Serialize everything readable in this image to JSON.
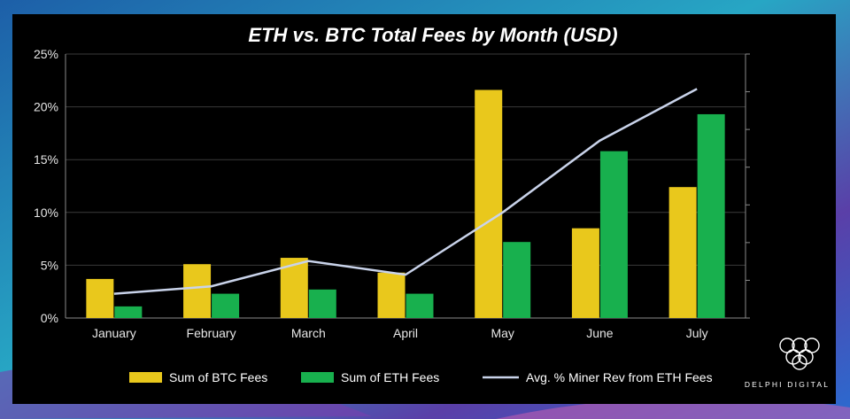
{
  "colors": {
    "btc": "#e9c81c",
    "eth": "#18b04e",
    "line": "#c9d3ea",
    "text": "#ffffff",
    "tick": "#e6e6e6",
    "grid": "#3a3a3a"
  },
  "chart_data": {
    "type": "bar",
    "title": "ETH vs. BTC Total Fees by Month (USD)",
    "categories": [
      "January",
      "February",
      "March",
      "April",
      "May",
      "June",
      "July"
    ],
    "ylim": [
      0,
      25
    ],
    "yticks": [
      "0%",
      "5%",
      "10%",
      "15%",
      "20%",
      "25%"
    ],
    "ytick_values": [
      0,
      5,
      10,
      15,
      20,
      25
    ],
    "series": [
      {
        "name": "Sum of BTC Fees",
        "kind": "bar",
        "values": [
          3.7,
          5.1,
          5.7,
          4.3,
          21.6,
          8.5,
          12.4
        ]
      },
      {
        "name": "Sum of ETH Fees",
        "kind": "bar",
        "values": [
          1.1,
          2.3,
          2.7,
          2.3,
          7.2,
          15.8,
          19.3
        ]
      },
      {
        "name": "Avg. % Miner Rev from ETH Fees",
        "kind": "line",
        "values": [
          2.3,
          3.0,
          5.4,
          4.1,
          10.0,
          16.8,
          21.7
        ]
      }
    ],
    "legend_position": "bottom"
  },
  "brand": {
    "name": "DELPHI DIGITAL",
    "logo_icon": "delphi-logo-icon"
  }
}
